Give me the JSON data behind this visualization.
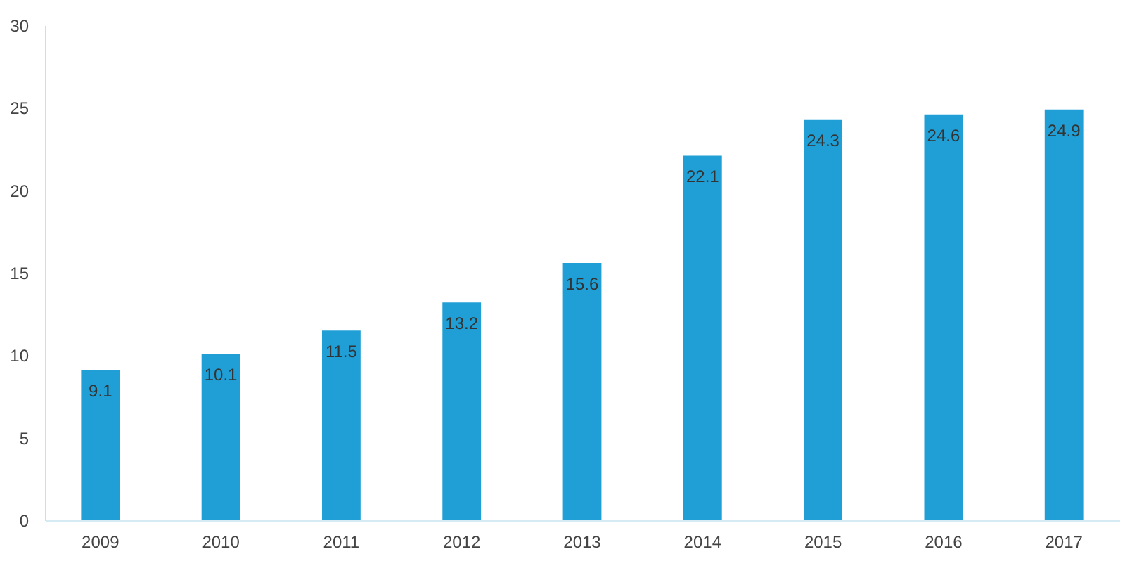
{
  "chart_data": {
    "type": "bar",
    "categories": [
      "2009",
      "2010",
      "2011",
      "2012",
      "2013",
      "2014",
      "2015",
      "2016",
      "2017"
    ],
    "values": [
      9.1,
      10.1,
      11.5,
      13.2,
      15.6,
      22.1,
      24.3,
      24.6,
      24.9
    ],
    "color": "#1f9fd5",
    "ylim": [
      0,
      30
    ],
    "yticks": [
      0,
      5,
      10,
      15,
      20,
      25,
      30
    ],
    "data_labels": true
  }
}
